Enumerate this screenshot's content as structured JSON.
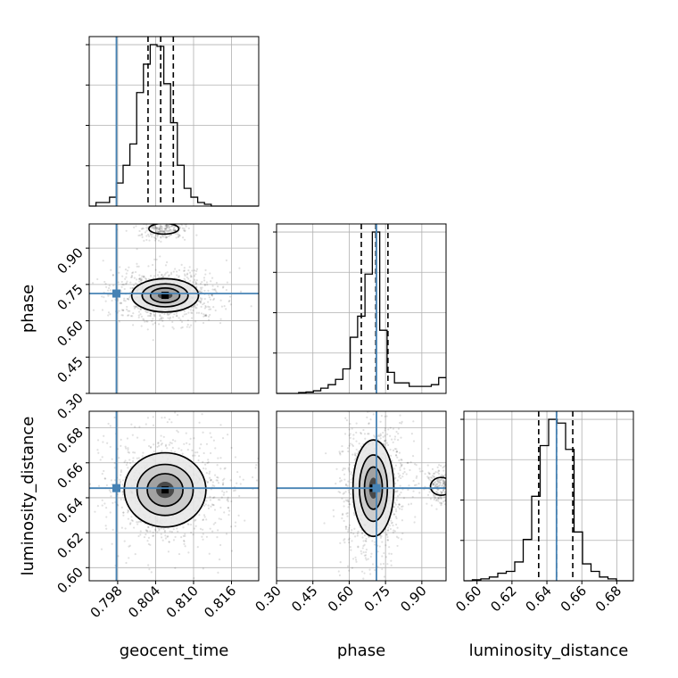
{
  "chart_data": {
    "type": "corner",
    "parameters": [
      "geocent_time",
      "phase",
      "luminosity_distance"
    ],
    "labels": {
      "x": [
        "geocent_time",
        "phase",
        "luminosity_distance"
      ],
      "y": [
        "",
        "phase",
        "luminosity_distance"
      ]
    },
    "ranges": {
      "geocent_time": [
        0.7935,
        0.8203
      ],
      "phase": [
        0.3,
        1.0
      ],
      "luminosity_distance": [
        0.5925,
        0.6895
      ]
    },
    "ticks": {
      "geocent_time": [
        "0.798",
        "0.804",
        "0.810",
        "0.816"
      ],
      "phase": [
        "0.30",
        "0.45",
        "0.60",
        "0.75",
        "0.90"
      ],
      "luminosity_distance": [
        "0.60",
        "0.62",
        "0.64",
        "0.66",
        "0.68"
      ]
    },
    "truths": {
      "geocent_time": 0.7978,
      "phase": 0.7125,
      "luminosity_distance": 0.6455
    },
    "truth_color": "#4682b4",
    "quantiles": {
      "geocent_time": [
        0.8028,
        0.8048,
        0.8068
      ],
      "phase": [
        0.65,
        0.71,
        0.76
      ],
      "luminosity_distance": [
        0.6353,
        0.6455,
        0.6548
      ]
    },
    "marginal_histograms": {
      "geocent_time": {
        "edges_range": [
          0.7935,
          0.8203
        ],
        "counts": [
          0,
          2,
          2,
          5,
          13,
          23,
          35,
          64,
          80,
          91,
          90,
          69,
          47,
          23,
          10,
          5,
          2,
          1,
          0,
          0,
          0,
          0,
          0,
          0,
          0
        ]
      },
      "phase": {
        "edges_range": [
          0.3,
          1.0
        ],
        "counts": [
          0,
          0,
          0,
          0.5,
          0.8,
          1.5,
          3,
          5,
          8,
          14,
          32,
          44,
          68,
          92,
          36,
          12,
          6,
          6,
          4,
          4,
          4,
          5,
          9
        ]
      },
      "luminosity_distance": {
        "edges_range": [
          0.5925,
          0.6895
        ],
        "counts": [
          0,
          0.5,
          1,
          2,
          4,
          5,
          10,
          22,
          45,
          72,
          86,
          84,
          70,
          26,
          9,
          5,
          2,
          1,
          0,
          0
        ]
      }
    },
    "joint_centers": {
      "phase_vs_geocent_time": [
        0.8055,
        0.705
      ],
      "luminosity_distance_vs_geocent_time": [
        0.8055,
        0.6445
      ],
      "luminosity_distance_vs_phase": [
        0.7,
        0.6455
      ]
    },
    "grid": true
  }
}
